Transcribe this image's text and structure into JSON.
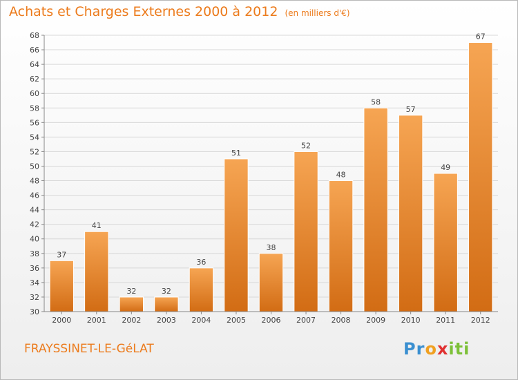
{
  "title": "Achats et Charges Externes 2000 à 2012",
  "unit": "(en milliers d'€)",
  "commune": "FRAYSSINET-LE-GéLAT",
  "logo": {
    "letters": [
      "P",
      "r",
      "o",
      "x",
      "i",
      "t",
      "i"
    ],
    "colors": [
      "#3a8fd0",
      "#3a8fd0",
      "#f0a020",
      "#e03030",
      "#7cc038",
      "#7cc038",
      "#7cc038"
    ]
  },
  "chart_data": {
    "type": "bar",
    "categories": [
      "2000",
      "2001",
      "2002",
      "2003",
      "2004",
      "2005",
      "2006",
      "2007",
      "2008",
      "2009",
      "2010",
      "2011",
      "2012"
    ],
    "values": [
      37,
      41,
      32,
      32,
      36,
      51,
      38,
      52,
      48,
      58,
      57,
      49,
      67
    ],
    "ylim": [
      30,
      68
    ],
    "yticks": [
      30,
      32,
      34,
      36,
      38,
      40,
      42,
      44,
      46,
      48,
      50,
      52,
      54,
      56,
      58,
      60,
      62,
      64,
      66,
      68
    ],
    "grid": true,
    "bar_color": "#f08a2a"
  }
}
